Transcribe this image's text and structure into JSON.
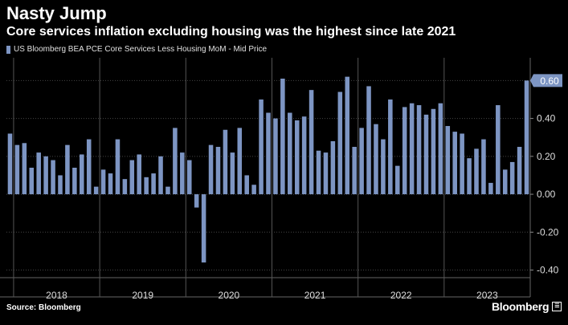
{
  "title": "Nasty Jump",
  "subtitle": "Core services inflation excluding housing was the highest since late 2021",
  "source": "Source: Bloomberg",
  "brand": "Bloomberg",
  "brand_badge": "☰",
  "colors": {
    "bar": "#7d95c3",
    "background": "#000000",
    "grid": "#444444",
    "text": "#ffffff"
  },
  "chart_data": {
    "type": "bar",
    "series": [
      {
        "name": "US Bloomberg BEA PCE Core Services Less Housing MoM - Mid Price",
        "values": [
          0.32,
          0.26,
          0.27,
          0.14,
          0.22,
          0.2,
          0.18,
          0.1,
          0.26,
          0.14,
          0.21,
          0.29,
          0.04,
          0.13,
          0.11,
          0.29,
          0.08,
          0.18,
          0.21,
          0.09,
          0.11,
          0.2,
          0.04,
          0.35,
          0.22,
          0.18,
          -0.07,
          -0.36,
          0.26,
          0.25,
          0.34,
          0.22,
          0.35,
          0.1,
          0.05,
          0.5,
          0.43,
          0.4,
          0.61,
          0.43,
          0.39,
          0.41,
          0.55,
          0.23,
          0.22,
          0.28,
          0.54,
          0.62,
          0.25,
          0.35,
          0.57,
          0.37,
          0.29,
          0.5,
          0.15,
          0.46,
          0.48,
          0.47,
          0.42,
          0.45,
          0.48,
          0.36,
          0.33,
          0.32,
          0.19,
          0.24,
          0.29,
          0.06,
          0.47,
          0.13,
          0.17,
          0.25,
          0.6
        ]
      }
    ],
    "start": "2017-12",
    "x_labels": [
      "2018",
      "2019",
      "2020",
      "2021",
      "2022",
      "2023"
    ],
    "y_ticks": [
      "0.60",
      "0.40",
      "0.20",
      "0.00",
      "-0.20",
      "-0.40"
    ],
    "ylim": [
      -0.44,
      0.72
    ],
    "last_value_label": "0.60",
    "grid": true,
    "y_axis_position": "right"
  }
}
